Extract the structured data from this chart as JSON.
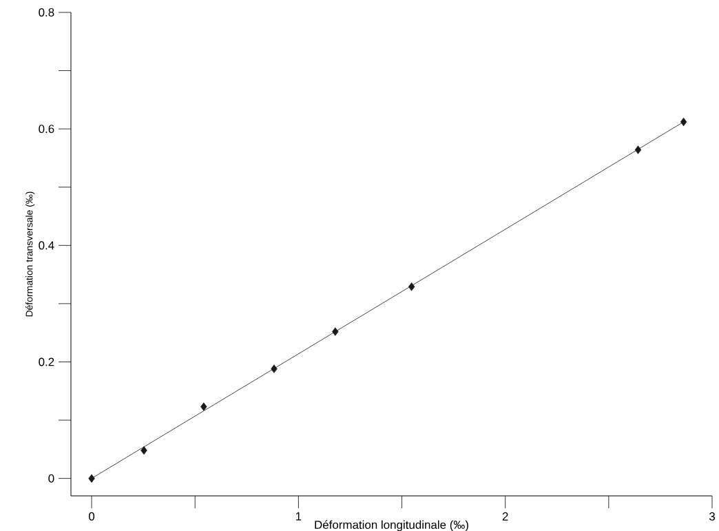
{
  "chart_data": {
    "type": "scatter",
    "xlabel": "Déformation longitudinale (‰)",
    "ylabel": "Déformation transversale (‰)",
    "series": [
      {
        "color": "#1a1a1a",
        "marker": "diamond",
        "x": [
          0,
          0.253,
          0.542,
          0.882,
          1.178,
          1.547,
          2.642,
          2.862
        ],
        "values": [
          0,
          0.048,
          0.123,
          0.188,
          0.252,
          0.329,
          0.564,
          0.612
        ]
      },
      {
        "type": "line",
        "color": "#333333",
        "marker": "none",
        "line_style": "solid",
        "x": [
          0,
          2.862
        ],
        "values": [
          0,
          0.612
        ]
      }
    ],
    "xlim": [
      -0.1,
      3
    ],
    "ylim": [
      -0.03,
      0.8
    ],
    "xticks": [
      0,
      1,
      2,
      3
    ],
    "yticks": [
      0,
      0.2,
      0.4,
      0.6,
      0.8
    ]
  }
}
